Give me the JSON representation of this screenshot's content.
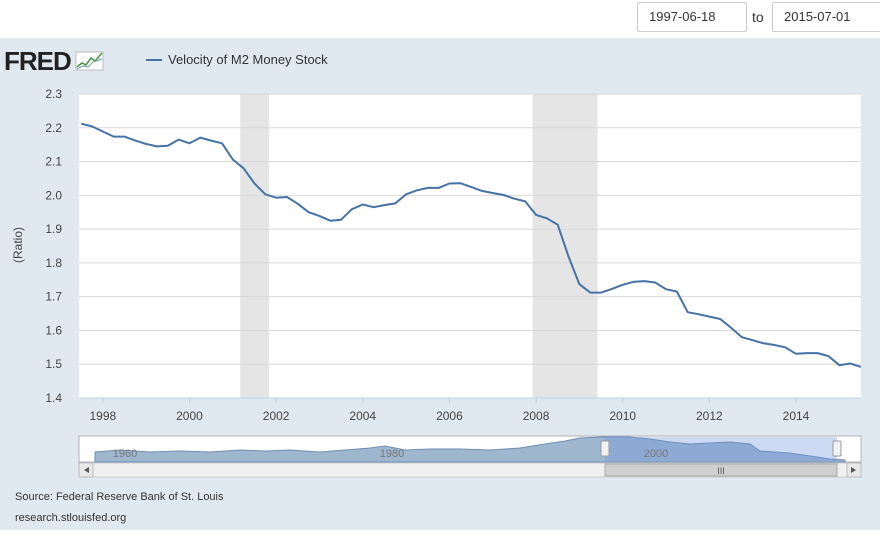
{
  "date_range": {
    "from": "1997-06-18",
    "separator": "to",
    "to": "2015-07-01"
  },
  "logo": {
    "text": "FRED"
  },
  "legend": {
    "label": "Velocity of M2 Money Stock",
    "color": "#4572a7"
  },
  "footer": {
    "source": "Source: Federal Reserve Bank of St. Louis",
    "site": "research.stlouisfed.org"
  },
  "navigator": {
    "labels": [
      "1960",
      "1980",
      "2000"
    ],
    "scroll_grip": "III"
  },
  "chart_data": {
    "type": "line",
    "title": "",
    "xlabel": "",
    "ylabel": "(Ratio)",
    "xlim": [
      1997.45,
      2015.5
    ],
    "ylim": [
      1.4,
      2.3
    ],
    "grid": true,
    "x_ticks": [
      1998,
      2000,
      2002,
      2004,
      2006,
      2008,
      2010,
      2012,
      2014
    ],
    "y_ticks": [
      1.4,
      1.5,
      1.6,
      1.7,
      1.8,
      1.9,
      2.0,
      2.1,
      2.2,
      2.3
    ],
    "recessions": [
      [
        2001.17,
        2001.84
      ],
      [
        2007.92,
        2009.42
      ]
    ],
    "series": [
      {
        "name": "Velocity of M2 Money Stock",
        "color": "#4572a7",
        "x": [
          1997.5,
          1997.75,
          1998,
          1998.25,
          1998.5,
          1998.75,
          1999,
          1999.25,
          1999.5,
          1999.75,
          2000,
          2000.25,
          2000.5,
          2000.75,
          2001,
          2001.25,
          2001.5,
          2001.75,
          2002,
          2002.25,
          2002.5,
          2002.75,
          2003,
          2003.25,
          2003.5,
          2003.75,
          2004,
          2004.25,
          2004.5,
          2004.75,
          2005,
          2005.25,
          2005.5,
          2005.75,
          2006,
          2006.25,
          2006.5,
          2006.75,
          2007,
          2007.25,
          2007.5,
          2007.75,
          2008,
          2008.25,
          2008.5,
          2008.75,
          2009,
          2009.25,
          2009.5,
          2009.75,
          2010,
          2010.25,
          2010.5,
          2010.75,
          2011,
          2011.25,
          2011.5,
          2011.75,
          2012,
          2012.25,
          2012.5,
          2012.75,
          2013,
          2013.25,
          2013.5,
          2013.75,
          2014,
          2014.25,
          2014.5,
          2014.75,
          2015,
          2015.25,
          2015.5
        ],
        "values": [
          2.212,
          2.204,
          2.189,
          2.174,
          2.174,
          2.162,
          2.152,
          2.145,
          2.147,
          2.165,
          2.154,
          2.171,
          2.162,
          2.154,
          2.106,
          2.08,
          2.035,
          2.003,
          1.993,
          1.995,
          1.975,
          1.95,
          1.939,
          1.925,
          1.928,
          1.959,
          1.973,
          1.965,
          1.971,
          1.976,
          2.003,
          2.015,
          2.022,
          2.022,
          2.035,
          2.036,
          2.025,
          2.013,
          2.007,
          2.001,
          1.99,
          1.982,
          1.942,
          1.932,
          1.913,
          1.818,
          1.737,
          1.712,
          1.712,
          1.723,
          1.735,
          1.744,
          1.746,
          1.742,
          1.722,
          1.715,
          1.654,
          1.648,
          1.641,
          1.634,
          1.608,
          1.58,
          1.571,
          1.562,
          1.557,
          1.55,
          1.531,
          1.533,
          1.533,
          1.524,
          1.497,
          1.502,
          1.492
        ]
      }
    ]
  }
}
